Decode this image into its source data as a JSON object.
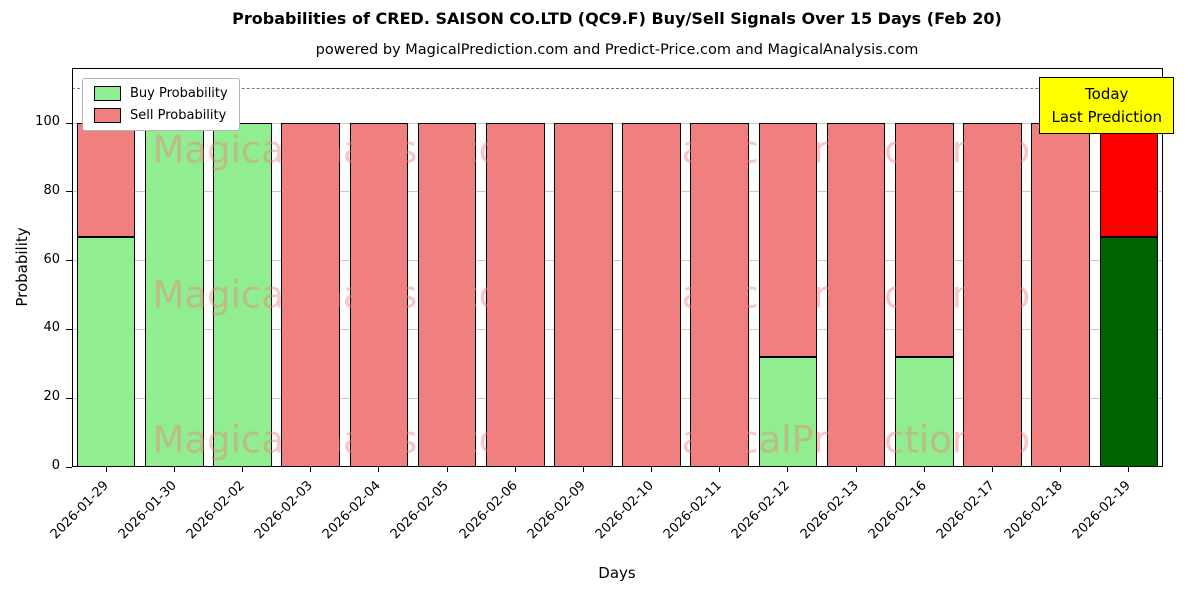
{
  "title": "Probabilities of CRED. SAISON CO.LTD (QC9.F) Buy/Sell Signals Over 15 Days (Feb 20)",
  "subtitle": "powered by MagicalPrediction.com and Predict-Price.com and MagicalAnalysis.com",
  "watermarks": [
    "MagicalAnalysis.com",
    "MagicalPrediction.com"
  ],
  "annotation": {
    "line1": "Today",
    "line2": "Last Prediction"
  },
  "legend": [
    {
      "label": "Buy Probability",
      "color": "#90EE90"
    },
    {
      "label": "Sell Probability",
      "color": "#F08080"
    }
  ],
  "chart_data": {
    "type": "bar",
    "stacked": true,
    "title": "Probabilities of CRED. SAISON CO.LTD (QC9.F) Buy/Sell Signals Over 15 Days (Feb 20)",
    "xlabel": "Days",
    "ylabel": "Probability",
    "ylim": [
      0,
      116
    ],
    "yticks": [
      0,
      20,
      40,
      60,
      80,
      100
    ],
    "dashed_line_y": 110,
    "grid": true,
    "legend_position": "upper-left",
    "categories": [
      "2026-01-29",
      "2026-01-30",
      "2026-02-02",
      "2026-02-03",
      "2026-02-04",
      "2026-02-05",
      "2026-02-06",
      "2026-02-09",
      "2026-02-10",
      "2026-02-11",
      "2026-02-12",
      "2026-02-13",
      "2026-02-16",
      "2026-02-17",
      "2026-02-18",
      "2026-02-19"
    ],
    "series": [
      {
        "name": "Buy Probability",
        "color": "#90EE90",
        "values": [
          67,
          100,
          100,
          0,
          0,
          0,
          0,
          0,
          0,
          0,
          32,
          0,
          32,
          0,
          0,
          67
        ]
      },
      {
        "name": "Sell Probability",
        "color": "#F08080",
        "values": [
          33,
          0,
          0,
          100,
          100,
          100,
          100,
          100,
          100,
          100,
          68,
          100,
          68,
          100,
          100,
          33
        ]
      }
    ],
    "last_bar_colors": [
      "#006400",
      "#FF0000"
    ],
    "bar_edge_color": "#000000"
  }
}
